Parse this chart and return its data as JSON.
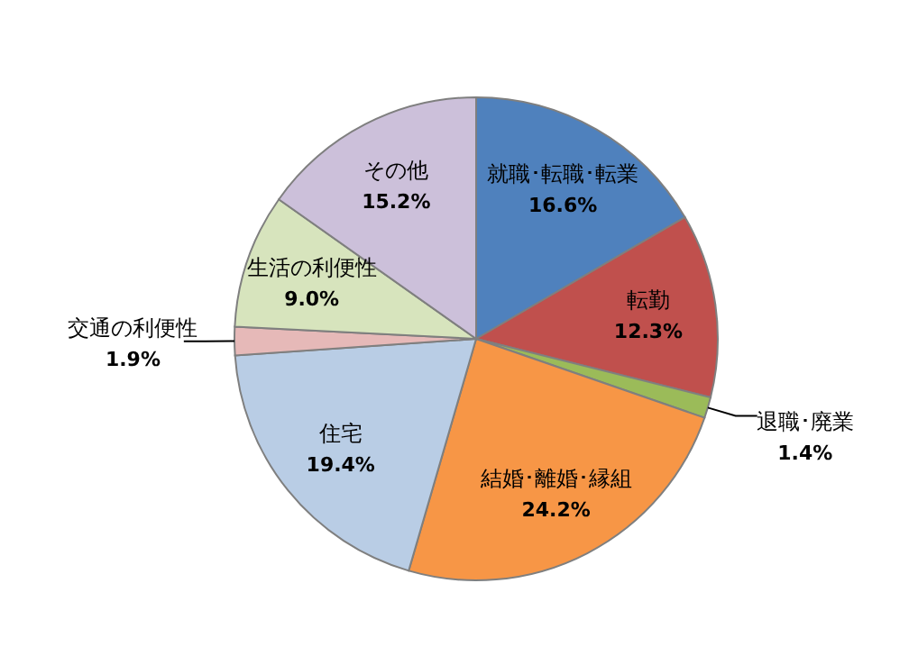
{
  "chart_data": {
    "type": "pie",
    "categories": [
      "就職･転職･転業",
      "転勤",
      "退職･廃業",
      "結婚･離婚･縁組",
      "住宅",
      "交通の利便性",
      "生活の利便性",
      "その他"
    ],
    "values": [
      16.6,
      12.3,
      1.4,
      24.2,
      19.4,
      1.9,
      9.0,
      15.2
    ],
    "colors": [
      "#4f81bd",
      "#c0504d",
      "#9bbb59",
      "#f79646",
      "#b9cde5",
      "#e6b9b8",
      "#d7e4bd",
      "#ccc0da"
    ],
    "value_labels": [
      "16.6%",
      "12.3%",
      "1.4%",
      "24.2%",
      "19.4%",
      "1.9%",
      "9.0%",
      "15.2%"
    ],
    "legend": false
  }
}
